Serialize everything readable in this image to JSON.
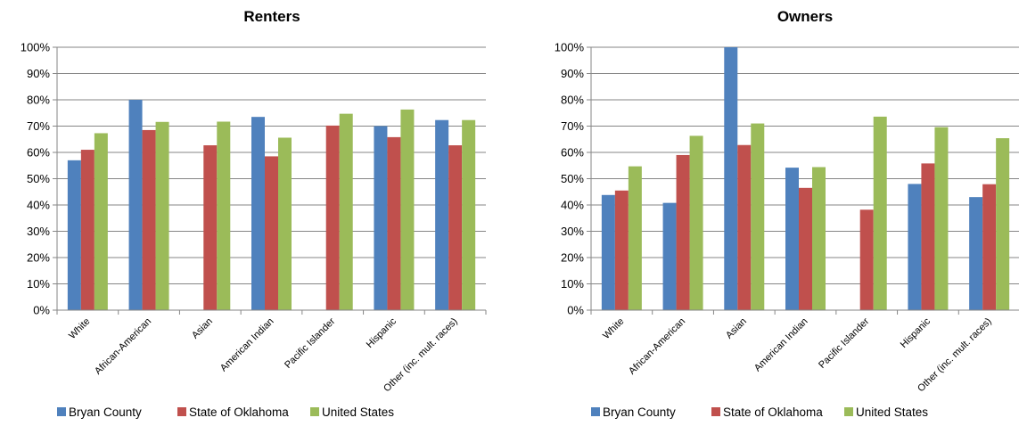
{
  "chart_data": [
    {
      "type": "bar",
      "title": "Renters",
      "categories": [
        "White",
        "African-American",
        "Asian",
        "American Indian",
        "Pacific Islander",
        "Hispanic",
        "Other (inc. mult. races)"
      ],
      "ylim": [
        0,
        100
      ],
      "yticks": [
        "0%",
        "10%",
        "20%",
        "30%",
        "40%",
        "50%",
        "60%",
        "70%",
        "80%",
        "90%",
        "100%"
      ],
      "grid": true,
      "legend_position": "bottom",
      "series": [
        {
          "name": "Bryan County",
          "color": "#4F81BD",
          "values": [
            57,
            80,
            null,
            73.5,
            null,
            70,
            72.3
          ]
        },
        {
          "name": "State of Oklahoma",
          "color": "#C0504D",
          "values": [
            61,
            68.5,
            62.7,
            58.5,
            70.2,
            65.8,
            62.7
          ]
        },
        {
          "name": "United States",
          "color": "#9BBB59",
          "values": [
            67.3,
            71.6,
            71.7,
            65.6,
            74.7,
            76.3,
            72.3
          ]
        }
      ]
    },
    {
      "type": "bar",
      "title": "Owners",
      "categories": [
        "White",
        "African-American",
        "Asian",
        "American Indian",
        "Pacific Islander",
        "Hispanic",
        "Other (inc. mult. races)"
      ],
      "ylim": [
        0,
        100
      ],
      "yticks": [
        "0%",
        "10%",
        "20%",
        "30%",
        "40%",
        "50%",
        "60%",
        "70%",
        "80%",
        "90%",
        "100%"
      ],
      "grid": true,
      "legend_position": "bottom",
      "series": [
        {
          "name": "Bryan County",
          "color": "#4F81BD",
          "values": [
            43.8,
            40.8,
            100,
            54.2,
            null,
            48,
            43
          ]
        },
        {
          "name": "State of Oklahoma",
          "color": "#C0504D",
          "values": [
            45.5,
            59,
            62.8,
            46.5,
            38.2,
            55.8,
            47.9
          ]
        },
        {
          "name": "United States",
          "color": "#9BBB59",
          "values": [
            54.7,
            66.3,
            71,
            54.4,
            73.6,
            69.6,
            65.4
          ]
        }
      ]
    }
  ]
}
